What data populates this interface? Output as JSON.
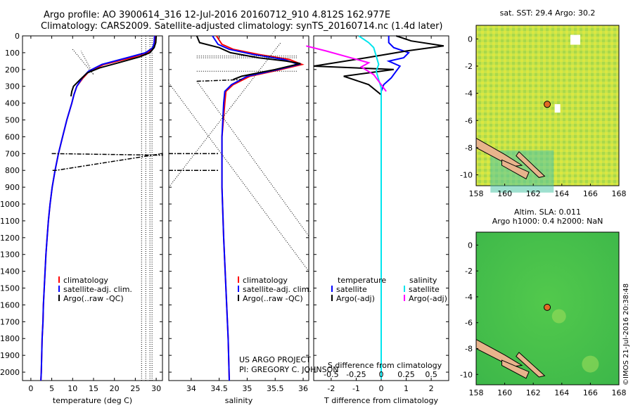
{
  "title": {
    "line1": "Argo profile: AO 3900614_316 12-Jul-2016 20160712_910 4.812S 162.977E",
    "line2": "Climatology: CARS2009. Satellite-adjusted climatology: synTS_20160714.nc (1.4d later)"
  },
  "colors": {
    "clim": "#ff0000",
    "sat": "#0000ff",
    "argo": "#000000",
    "sal_sat": "#00e5ee",
    "sal_argo": "#ff00ff",
    "dot": "#e06a25",
    "land": "#e8b48c"
  },
  "chart_data": [
    {
      "type": "line",
      "title": "",
      "xlabel": "temperature (deg C)",
      "ylabel": "",
      "xlim": [
        -2,
        31.5
      ],
      "ylim": [
        2050,
        0
      ],
      "xticks": [
        0,
        5,
        10,
        15,
        20,
        25,
        30
      ],
      "yticks": [
        0,
        100,
        200,
        300,
        400,
        500,
        600,
        700,
        800,
        900,
        1000,
        1100,
        1200,
        1300,
        1400,
        1500,
        1600,
        1700,
        1800,
        1900,
        2000
      ],
      "legend": [
        "climatology",
        "satellite-adj. clim.",
        "Argo(..raw -QC)"
      ],
      "series": [
        {
          "name": "climatology",
          "color": "#ff0000",
          "points": [
            [
              29.9,
              0
            ],
            [
              29.8,
              40
            ],
            [
              29.5,
              70
            ],
            [
              28,
              100
            ],
            [
              24,
              130
            ],
            [
              17.5,
              170
            ],
            [
              14,
              210
            ],
            [
              12.5,
              250
            ],
            [
              11,
              300
            ],
            [
              10.3,
              350
            ],
            [
              9.8,
              400
            ],
            [
              8.6,
              500
            ],
            [
              7.6,
              600
            ],
            [
              6.6,
              700
            ],
            [
              5.8,
              800
            ],
            [
              5.1,
              900
            ],
            [
              4.6,
              1000
            ],
            [
              4.2,
              1100
            ],
            [
              3.9,
              1200
            ],
            [
              3.6,
              1300
            ],
            [
              3.4,
              1400
            ],
            [
              3.2,
              1500
            ],
            [
              3.0,
              1600
            ],
            [
              2.9,
              1700
            ],
            [
              2.7,
              1800
            ],
            [
              2.6,
              1900
            ],
            [
              2.5,
              2000
            ],
            [
              2.4,
              2050
            ]
          ]
        },
        {
          "name": "satellite-adj. clim.",
          "color": "#0000ff",
          "points": [
            [
              29.6,
              0
            ],
            [
              29.5,
              40
            ],
            [
              29.2,
              70
            ],
            [
              27.5,
              100
            ],
            [
              23,
              130
            ],
            [
              17,
              170
            ],
            [
              13.8,
              210
            ],
            [
              12.3,
              250
            ],
            [
              11,
              300
            ],
            [
              10.3,
              350
            ],
            [
              9.8,
              400
            ],
            [
              8.6,
              500
            ],
            [
              7.6,
              600
            ],
            [
              6.6,
              700
            ],
            [
              5.8,
              800
            ],
            [
              5.1,
              900
            ],
            [
              4.6,
              1000
            ],
            [
              4.2,
              1100
            ],
            [
              3.9,
              1200
            ],
            [
              3.6,
              1300
            ],
            [
              3.4,
              1400
            ],
            [
              3.2,
              1500
            ],
            [
              3.0,
              1600
            ],
            [
              2.9,
              1700
            ],
            [
              2.7,
              1800
            ],
            [
              2.6,
              1900
            ],
            [
              2.5,
              2000
            ],
            [
              2.4,
              2050
            ]
          ]
        },
        {
          "name": "Argo(..raw -QC)",
          "color": "#000000",
          "points": [
            [
              30,
              0
            ],
            [
              29.9,
              40
            ],
            [
              29.5,
              70
            ],
            [
              28.5,
              100
            ],
            [
              26,
              125
            ],
            [
              21,
              160
            ],
            [
              16.5,
              190
            ],
            [
              13.5,
              220
            ],
            [
              11.8,
              260
            ],
            [
              10.2,
              300
            ],
            [
              9.8,
              330
            ],
            [
              9.6,
              360
            ]
          ]
        }
      ]
    },
    {
      "type": "line",
      "title": "",
      "xlabel": "salinity",
      "ylabel": "",
      "xlim": [
        33.6,
        36.1
      ],
      "ylim": [
        2050,
        0
      ],
      "xticks": [
        34,
        34.5,
        35,
        35.5,
        36
      ],
      "legend": [
        "climatology",
        "satellite-adj. clim.",
        "Argo(..raw -QC)"
      ],
      "series": [
        {
          "name": "climatology",
          "color": "#ff0000",
          "points": [
            [
              34.45,
              0
            ],
            [
              34.55,
              50
            ],
            [
              34.75,
              80
            ],
            [
              35.2,
              110
            ],
            [
              35.75,
              140
            ],
            [
              35.98,
              170
            ],
            [
              35.6,
              200
            ],
            [
              35.05,
              240
            ],
            [
              34.75,
              290
            ],
            [
              34.62,
              330
            ],
            [
              34.6,
              400
            ],
            [
              34.55,
              600
            ],
            [
              34.55,
              900
            ],
            [
              34.58,
              1200
            ],
            [
              34.62,
              1500
            ],
            [
              34.66,
              1800
            ],
            [
              34.68,
              2050
            ]
          ]
        },
        {
          "name": "satellite-adj. clim.",
          "color": "#0000ff",
          "points": [
            [
              34.38,
              0
            ],
            [
              34.48,
              50
            ],
            [
              34.68,
              80
            ],
            [
              35.1,
              110
            ],
            [
              35.65,
              140
            ],
            [
              35.92,
              170
            ],
            [
              35.55,
              200
            ],
            [
              35.0,
              240
            ],
            [
              34.72,
              290
            ],
            [
              34.6,
              330
            ],
            [
              34.58,
              400
            ],
            [
              34.55,
              600
            ],
            [
              34.55,
              900
            ],
            [
              34.58,
              1200
            ],
            [
              34.62,
              1500
            ],
            [
              34.66,
              1800
            ],
            [
              34.68,
              2050
            ]
          ]
        },
        {
          "name": "Argo(..raw -QC)",
          "color": "#000000",
          "points": [
            [
              34.1,
              0
            ],
            [
              34.15,
              40
            ],
            [
              34.5,
              70
            ],
            [
              34.7,
              100
            ],
            [
              35.2,
              130
            ],
            [
              35.7,
              150
            ],
            [
              35.95,
              165
            ],
            [
              35.5,
              200
            ],
            [
              34.9,
              240
            ],
            [
              34.75,
              260
            ]
          ]
        }
      ]
    },
    {
      "type": "line",
      "title": "",
      "xlabel": "T difference from climatology",
      "xlabel2": "S difference from climatology",
      "ylabel": "",
      "xlim": [
        -2.7,
        2.7
      ],
      "ylim": [
        2050,
        0
      ],
      "xticks": [
        -2,
        -1,
        0,
        1,
        2
      ],
      "sticks": [
        "-0.5",
        "-0.25",
        "0",
        "0.25",
        "0.5"
      ],
      "legend_temp_title": "temperature",
      "legend_sal_title": "salinity",
      "legend_items": [
        "satellite",
        "Argo(-adj)",
        "satellite",
        "Argo(-adj)"
      ],
      "series": [
        {
          "name": "satellite",
          "color": "#0000ff",
          "points": [
            [
              0.3,
              0
            ],
            [
              0.3,
              40
            ],
            [
              0.5,
              70
            ],
            [
              1.1,
              100
            ],
            [
              0.9,
              130
            ],
            [
              0.3,
              150
            ],
            [
              0.75,
              180
            ],
            [
              0.6,
              210
            ],
            [
              0.4,
              250
            ],
            [
              0.1,
              290
            ],
            [
              0,
              330
            ],
            [
              0,
              400
            ],
            [
              0,
              800
            ],
            [
              0,
              1200
            ],
            [
              0,
              1600
            ],
            [
              0,
              2000
            ]
          ]
        },
        {
          "name": "Argo(-adj)",
          "color": "#000000",
          "points": [
            [
              0.6,
              0
            ],
            [
              1.2,
              30
            ],
            [
              2.5,
              60
            ],
            [
              1,
              90
            ],
            [
              -0.6,
              130
            ],
            [
              -2.7,
              180
            ],
            [
              0.5,
              200
            ],
            [
              -1.5,
              240
            ],
            [
              -0.5,
              290
            ],
            [
              0,
              350
            ],
            [
              0,
              400
            ]
          ]
        },
        {
          "name": "satellite",
          "color": "#00e5ee",
          "points": [
            [
              -0.9,
              0
            ],
            [
              -0.5,
              40
            ],
            [
              -0.3,
              70
            ],
            [
              -0.2,
              120
            ],
            [
              -0.1,
              170
            ],
            [
              -0.2,
              210
            ],
            [
              -0.1,
              260
            ],
            [
              0,
              310
            ],
            [
              0,
              400
            ],
            [
              0,
              900
            ],
            [
              0,
              1400
            ],
            [
              0,
              2040
            ]
          ]
        },
        {
          "name": "Argo(-adj)",
          "color": "#ff00ff",
          "points": [
            [
              -3,
              60
            ],
            [
              -2.2,
              90
            ],
            [
              -0.5,
              160
            ],
            [
              -0.8,
              185
            ],
            [
              -0.3,
              230
            ],
            [
              0,
              290
            ],
            [
              0.2,
              330
            ]
          ]
        }
      ]
    },
    {
      "type": "heatmap",
      "title": "sat. SST: 29.4 Argo: 30.2",
      "xlim": [
        158,
        168
      ],
      "ylim": [
        -10.8,
        1
      ],
      "xticks": [
        158,
        160,
        162,
        164,
        166,
        168
      ],
      "yticks": [
        0,
        -2,
        -4,
        -6,
        -8,
        -10
      ],
      "marker": [
        162.977,
        -4.812
      ]
    },
    {
      "type": "heatmap",
      "title": "Altim. SLA: 0.011",
      "subtitle": "Argo h1000: 0.4 h2000: NaN",
      "xlim": [
        158,
        168
      ],
      "ylim": [
        -10.8,
        1
      ],
      "xticks": [
        158,
        160,
        162,
        164,
        166,
        168
      ],
      "yticks": [
        0,
        -2,
        -4,
        -6,
        -8,
        -10
      ],
      "marker": [
        162.977,
        -4.812
      ]
    }
  ],
  "annotations": {
    "project_line1": "US ARGO PROJECT",
    "project_line2": "PI: GREGORY C. JOHNSON",
    "credit": "©IMOS 21-Jul-2016 20:38:48"
  }
}
